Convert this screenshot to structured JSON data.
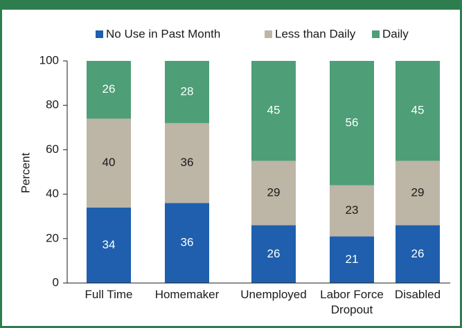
{
  "chart_data": {
    "type": "stacked_bar",
    "categories": [
      "Full Time",
      "Homemaker",
      "Unemployed",
      "Labor Force Dropout",
      "Disabled"
    ],
    "series": [
      {
        "name": "No Use in Past Month",
        "color": "#1f5fad",
        "label_color": "#ffffff",
        "values": [
          34,
          36,
          26,
          21,
          26
        ]
      },
      {
        "name": "Less than Daily",
        "color": "#bdb5a6",
        "label_color": "#1a1a1a",
        "values": [
          40,
          36,
          29,
          23,
          29
        ]
      },
      {
        "name": "Daily",
        "color": "#4e9e78",
        "label_color": "#ffffff",
        "values": [
          26,
          28,
          45,
          56,
          45
        ]
      }
    ],
    "y_label": "Percent",
    "ylim": [
      0,
      100
    ],
    "yticks": [
      0,
      20,
      40,
      60,
      80,
      100
    ],
    "grid": false,
    "legend": "top"
  }
}
